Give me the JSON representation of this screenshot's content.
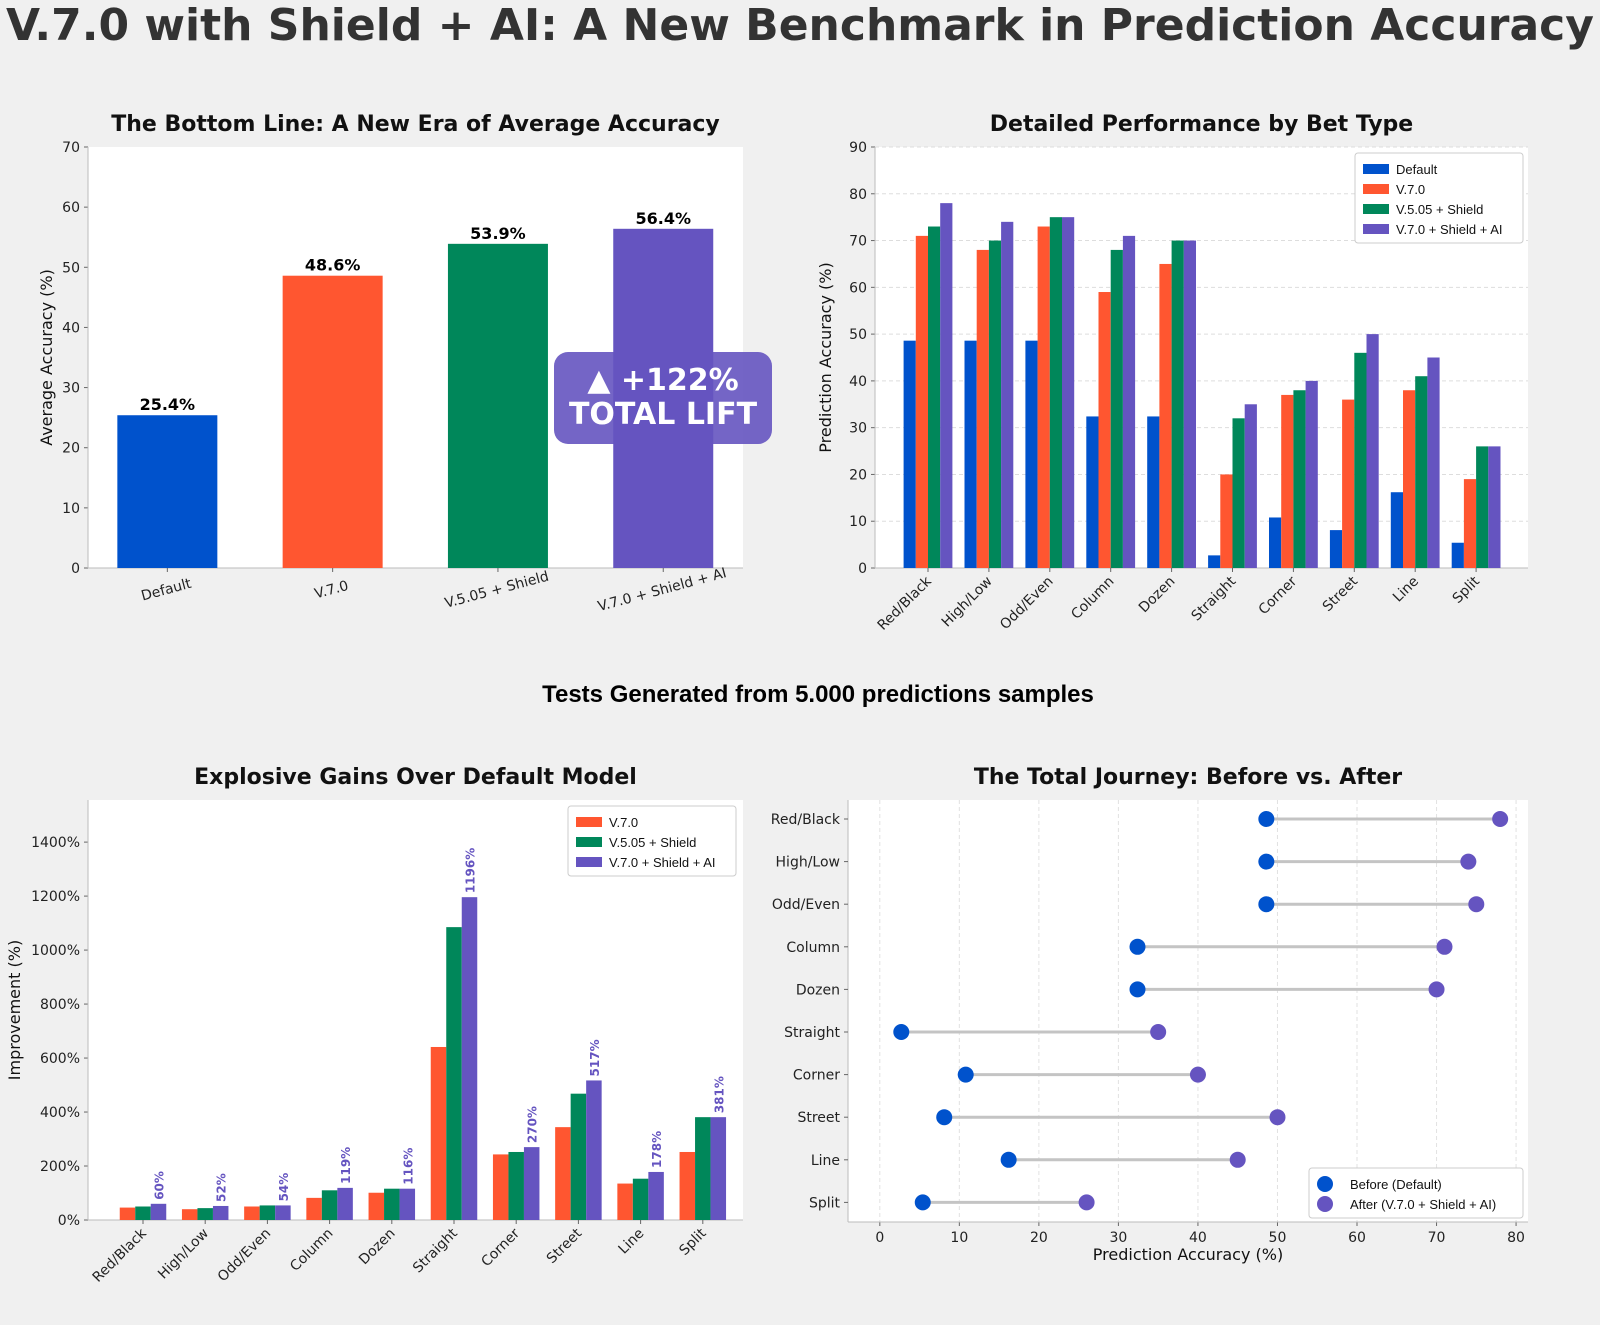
{
  "title": "V.7.0 with Shield + AI: A New Benchmark in Prediction Accuracy",
  "note": "Tests Generated from 5.000 predictions samples",
  "colors": {
    "default": "#0052cc",
    "v70": "#ff5630",
    "v505": "#00875a",
    "ai": "#6554c0"
  },
  "chart_data": [
    {
      "type": "bar",
      "title": "The Bottom Line: A New Era of Average Accuracy",
      "xlabel": "",
      "ylabel": "Average Accuracy (%)",
      "categories": [
        "Default",
        "V.7.0",
        "V.5.05 + Shield",
        "V.7.0 + Shield + AI"
      ],
      "values": [
        25.4,
        48.6,
        53.9,
        56.4
      ],
      "value_labels": [
        "25.4%",
        "48.6%",
        "53.9%",
        "56.4%"
      ],
      "bar_colors": [
        "#0052cc",
        "#ff5630",
        "#00875a",
        "#6554c0"
      ],
      "ylim": [
        0,
        70
      ],
      "yticks": [
        0,
        10,
        20,
        30,
        40,
        50,
        60,
        70
      ],
      "ytick_labels": [
        "0",
        "10",
        "20",
        "30",
        "40",
        "50",
        "60",
        "70"
      ],
      "grid": false,
      "annotation": {
        "line1": "▲ +122%",
        "line2": "TOTAL LIFT"
      }
    },
    {
      "type": "bar",
      "title": "Detailed Performance by Bet Type",
      "xlabel": "",
      "ylabel": "Prediction Accuracy (%)",
      "categories": [
        "Red/Black",
        "High/Low",
        "Odd/Even",
        "Column",
        "Dozen",
        "Straight",
        "Corner",
        "Street",
        "Line",
        "Split"
      ],
      "series": [
        {
          "name": "Default",
          "color": "#0052cc",
          "values": [
            48.6,
            48.6,
            48.6,
            32.4,
            32.4,
            2.7,
            10.8,
            8.1,
            16.2,
            5.4
          ]
        },
        {
          "name": "V.7.0",
          "color": "#ff5630",
          "values": [
            71,
            68,
            73,
            59,
            65,
            20,
            37,
            36,
            38,
            19
          ]
        },
        {
          "name": "V.5.05 + Shield",
          "color": "#00875a",
          "values": [
            73,
            70,
            75,
            68,
            70,
            32,
            38,
            46,
            41,
            26
          ]
        },
        {
          "name": "V.7.0 + Shield + AI",
          "color": "#6554c0",
          "values": [
            78,
            74,
            75,
            71,
            70,
            35,
            40,
            50,
            45,
            26
          ]
        }
      ],
      "ylim": [
        0,
        90
      ],
      "yticks": [
        0,
        10,
        20,
        30,
        40,
        50,
        60,
        70,
        80,
        90
      ],
      "ytick_labels": [
        "0",
        "10",
        "20",
        "30",
        "40",
        "50",
        "60",
        "70",
        "80",
        "90"
      ],
      "grid": true,
      "legend": "top-right"
    },
    {
      "type": "bar",
      "title": "Explosive Gains Over Default Model",
      "xlabel": "",
      "ylabel": "Improvement (%)",
      "categories": [
        "Red/Black",
        "High/Low",
        "Odd/Even",
        "Column",
        "Dozen",
        "Straight",
        "Corner",
        "Street",
        "Line",
        "Split"
      ],
      "series": [
        {
          "name": "V.7.0",
          "color": "#ff5630",
          "values": [
            46,
            40,
            50,
            82,
            101,
            641,
            243,
            344,
            135,
            252
          ]
        },
        {
          "name": "V.5.05 + Shield",
          "color": "#00875a",
          "values": [
            50,
            44,
            54,
            110,
            116,
            1085,
            252,
            468,
            153,
            381
          ]
        },
        {
          "name": "V.7.0 + Shield + AI",
          "color": "#6554c0",
          "values": [
            60,
            52,
            54,
            119,
            116,
            1196,
            270,
            517,
            178,
            381
          ]
        }
      ],
      "data_labels": [
        "60%",
        "52%",
        "54%",
        "119%",
        "116%",
        "1196%",
        "270%",
        "517%",
        "178%",
        "381%"
      ],
      "ylim": [
        0,
        1556
      ],
      "yticks": [
        0,
        200,
        400,
        600,
        800,
        1000,
        1200,
        1400
      ],
      "ytick_labels": [
        "0%",
        "200%",
        "400%",
        "600%",
        "800%",
        "1000%",
        "1200%",
        "1400%"
      ],
      "grid": false,
      "legend": "top-right"
    },
    {
      "type": "scatter",
      "title": "The Total Journey: Before vs. After",
      "xlabel": "Prediction Accuracy (%)",
      "ylabel": "",
      "categories": [
        "Red/Black",
        "High/Low",
        "Odd/Even",
        "Column",
        "Dozen",
        "Straight",
        "Corner",
        "Street",
        "Line",
        "Split"
      ],
      "series": [
        {
          "name": "Before (Default)",
          "color": "#0052cc",
          "values": [
            48.6,
            48.6,
            48.6,
            32.4,
            32.4,
            2.7,
            10.8,
            8.1,
            16.2,
            5.4
          ]
        },
        {
          "name": "After (V.7.0 + Shield + AI)",
          "color": "#6554c0",
          "values": [
            78,
            74,
            75,
            71,
            70,
            35,
            40,
            50,
            45,
            26
          ]
        }
      ],
      "connector_color": "#c4c4c4",
      "xlim": [
        -4,
        81.5
      ],
      "xticks": [
        0,
        10,
        20,
        30,
        40,
        50,
        60,
        70,
        80
      ],
      "xtick_labels": [
        "0",
        "10",
        "20",
        "30",
        "40",
        "50",
        "60",
        "70",
        "80"
      ],
      "grid": true,
      "legend": "bottom-right"
    }
  ]
}
